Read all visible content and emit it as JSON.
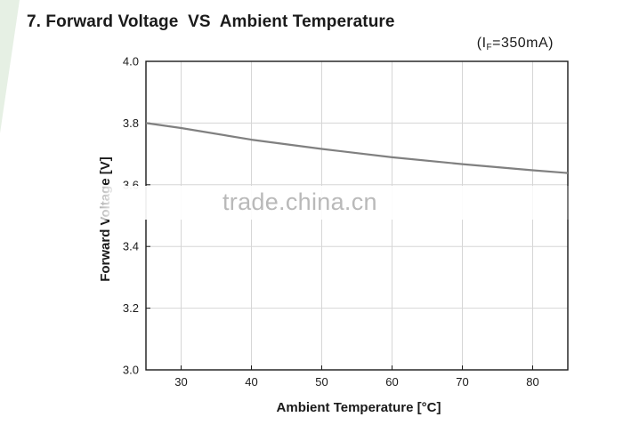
{
  "chart_data": {
    "type": "line",
    "title": "7. Forward Voltage  VS  Ambient Temperature",
    "condition": {
      "prefix": "(I",
      "subscript": "F",
      "suffix": "=350mA)"
    },
    "xlabel": "Ambient Temperature [°C]",
    "ylabel": "Forward Voltage [V]",
    "xlim": [
      25,
      85
    ],
    "ylim": [
      3.0,
      4.0
    ],
    "xticks": [
      30,
      40,
      50,
      60,
      70,
      80
    ],
    "yticks": [
      "3.0",
      "3.2",
      "3.4",
      "3.6",
      "3.8",
      "4.0"
    ],
    "grid": true,
    "line_color": "#808080",
    "series": [
      {
        "x": [
          25,
          30,
          40,
          50,
          60,
          70,
          80,
          85
        ],
        "y": [
          3.8,
          3.784,
          3.746,
          3.716,
          3.689,
          3.667,
          3.647,
          3.638
        ]
      }
    ]
  },
  "watermark": "trade.china.cn"
}
